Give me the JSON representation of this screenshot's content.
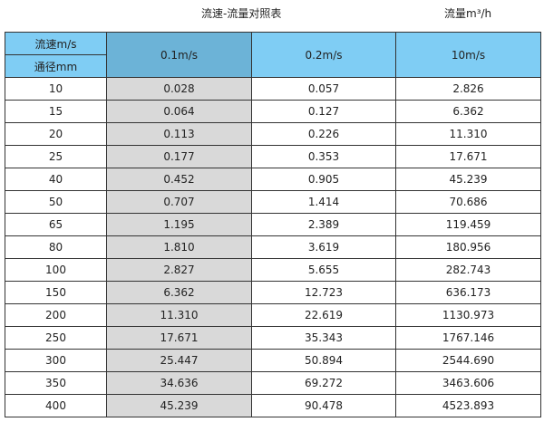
{
  "title": "流速-流量对照表",
  "unit": "流量m³/h",
  "header": {
    "velocity_label": "流速m/s",
    "diameter_label": "通径mm",
    "columns": [
      "0.1m/s",
      "0.2m/s",
      "10m/s"
    ]
  },
  "colors": {
    "header": "#7fcdf4",
    "selected_header": "#6cb3d7",
    "highlight_column": "#d9d9d9"
  },
  "rows": [
    [
      "10",
      "0.028",
      "0.057",
      "2.826"
    ],
    [
      "15",
      "0.064",
      "0.127",
      "6.362"
    ],
    [
      "20",
      "0.113",
      "0.226",
      "11.310"
    ],
    [
      "25",
      "0.177",
      "0.353",
      "17.671"
    ],
    [
      "40",
      "0.452",
      "0.905",
      "45.239"
    ],
    [
      "50",
      "0.707",
      "1.414",
      "70.686"
    ],
    [
      "65",
      "1.195",
      "2.389",
      "119.459"
    ],
    [
      "80",
      "1.810",
      "3.619",
      "180.956"
    ],
    [
      "100",
      "2.827",
      "5.655",
      "282.743"
    ],
    [
      "150",
      "6.362",
      "12.723",
      "636.173"
    ],
    [
      "200",
      "11.310",
      "22.619",
      "1130.973"
    ],
    [
      "250",
      "17.671",
      "35.343",
      "1767.146"
    ],
    [
      "300",
      "25.447",
      "50.894",
      "2544.690"
    ],
    [
      "350",
      "34.636",
      "69.272",
      "3463.606"
    ],
    [
      "400",
      "45.239",
      "90.478",
      "4523.893"
    ]
  ]
}
